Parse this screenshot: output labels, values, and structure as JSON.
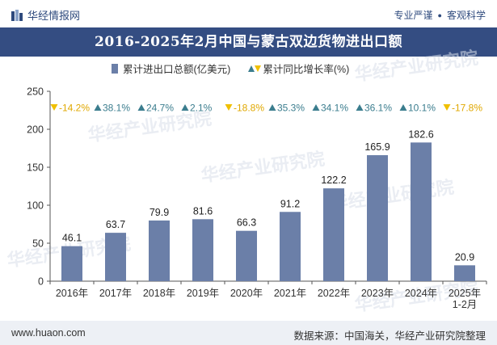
{
  "header": {
    "brand": "华经情报网",
    "slogan_left": "专业严谨",
    "slogan_sep": "●",
    "slogan_right": "客观科学"
  },
  "title": "2016-2025年2月中国与蒙古双边货物进出口额",
  "legend": {
    "series1": "累计进出口总额(亿美元)",
    "series2": "累计同比增长率(%)"
  },
  "watermark": "华经产业研究院",
  "footer": {
    "site": "www.huaon.com",
    "source": "数据来源：中国海关，华经产业研究院整理"
  },
  "colors": {
    "bar": "#6b7fa8",
    "up": "#3b7d8e",
    "down": "#f0c000",
    "title_bg": "#344d82"
  },
  "chart_data": {
    "type": "bar",
    "categories": [
      "2016年",
      "2017年",
      "2018年",
      "2019年",
      "2020年",
      "2021年",
      "2022年",
      "2023年",
      "2024年",
      "2025年\n1-2月"
    ],
    "series": [
      {
        "name": "累计进出口总额(亿美元)",
        "values": [
          46.1,
          63.7,
          79.9,
          81.6,
          66.3,
          91.2,
          122.2,
          165.9,
          182.6,
          20.9
        ]
      },
      {
        "name": "累计同比增长率(%)",
        "values": [
          -14.2,
          38.1,
          24.7,
          2.1,
          -18.8,
          35.3,
          34.1,
          36.1,
          10.1,
          -17.8
        ]
      }
    ],
    "growth_labels": [
      "-14.2%",
      "38.1%",
      "24.7%",
      "2.1%",
      "-18.8%",
      "35.3%",
      "34.1%",
      "36.1%",
      "10.1%",
      "-17.8%"
    ],
    "ylim": [
      0,
      250
    ],
    "yticks": [
      0,
      50,
      100,
      150,
      200,
      250
    ],
    "grid": false,
    "legend_position": "top"
  }
}
